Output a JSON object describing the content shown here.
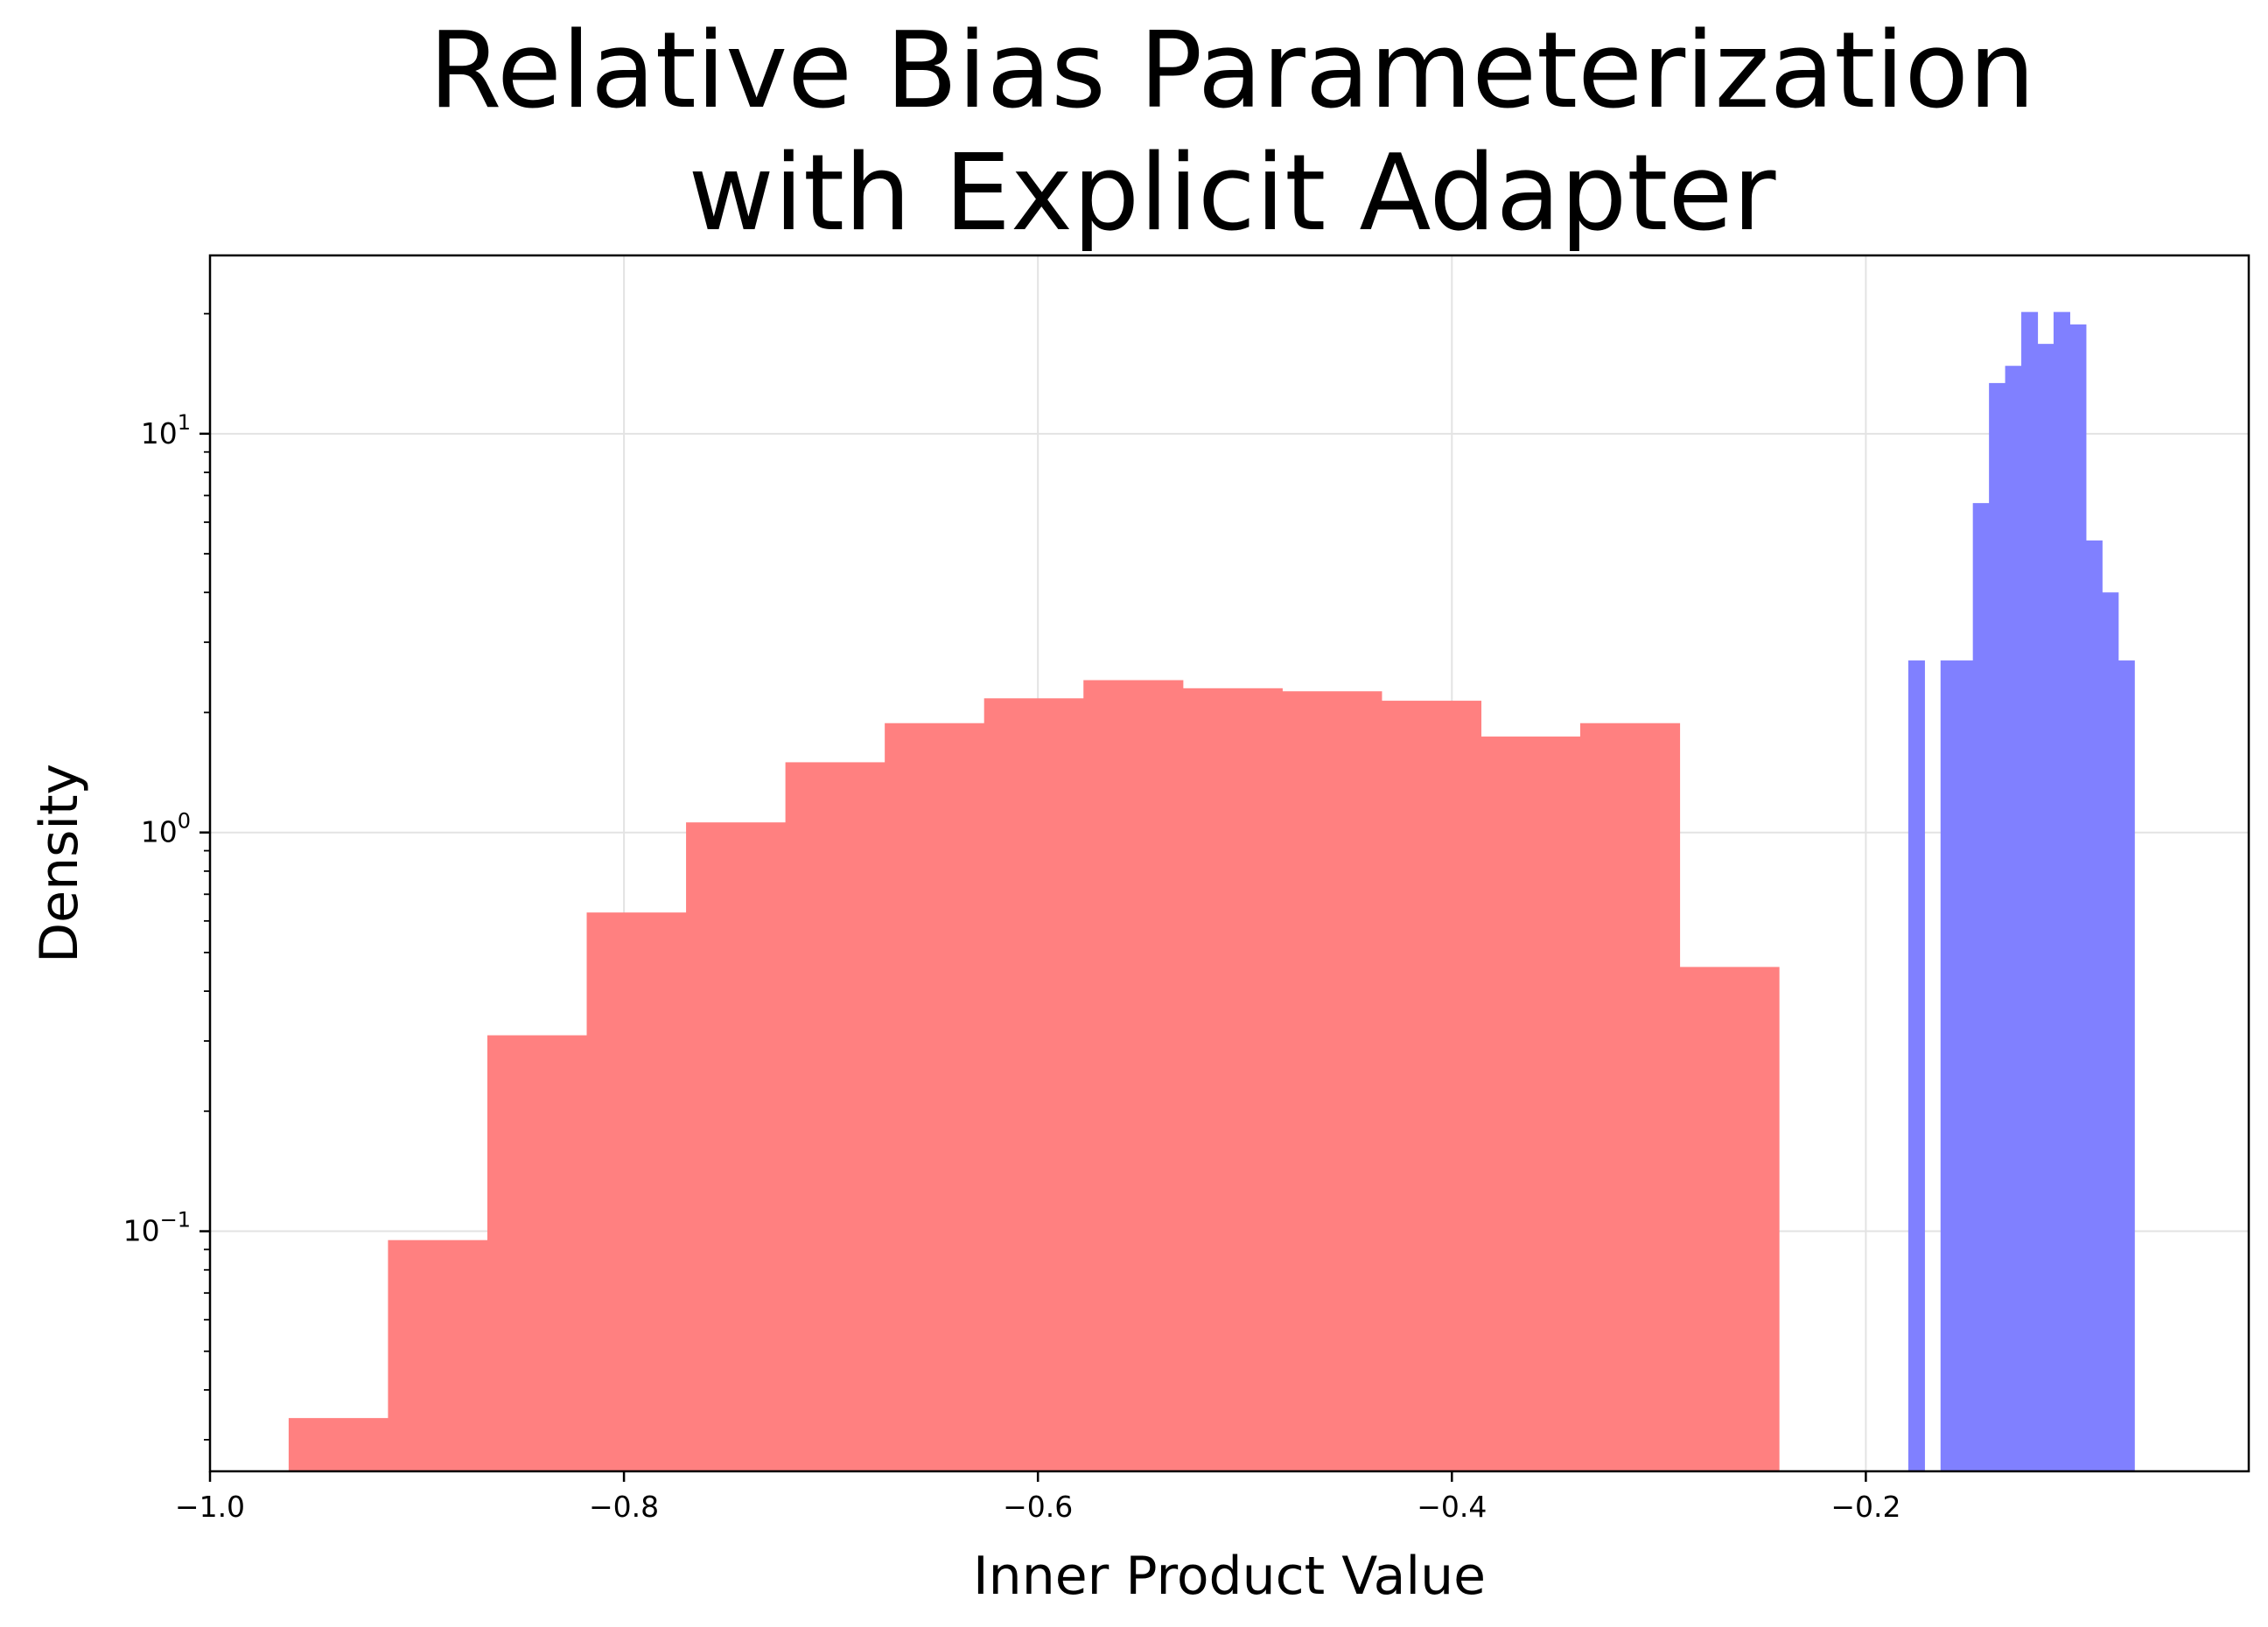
{
  "chart_data": {
    "type": "bar",
    "title_lines": [
      "Relative Bias Parameterization",
      "with Explicit Adapter"
    ],
    "xlabel": "Inner Product Value",
    "ylabel": "Density",
    "xlim": [
      -1.0,
      -0.015
    ],
    "ylim": [
      0.025,
      28
    ],
    "yscale": "log",
    "grid": true,
    "x_ticks": [
      {
        "value": -1.0,
        "label": "−1.0"
      },
      {
        "value": -0.8,
        "label": "−0.8"
      },
      {
        "value": -0.6,
        "label": "−0.6"
      },
      {
        "value": -0.4,
        "label": "−0.4"
      },
      {
        "value": -0.2,
        "label": "−0.2"
      }
    ],
    "y_ticks": [
      {
        "value": 0.1,
        "base": "10",
        "exp": "−1"
      },
      {
        "value": 1,
        "base": "10",
        "exp": "0"
      },
      {
        "value": 10,
        "base": "10",
        "exp": "1"
      }
    ],
    "series": [
      {
        "color": "#ff8080",
        "bins": [
          {
            "x0": -0.962,
            "x1": -0.914,
            "value": 0.034
          },
          {
            "x0": -0.914,
            "x1": -0.866,
            "value": 0.095
          },
          {
            "x0": -0.866,
            "x1": -0.818,
            "value": 0.31
          },
          {
            "x0": -0.818,
            "x1": -0.77,
            "value": 0.63
          },
          {
            "x0": -0.77,
            "x1": -0.722,
            "value": 1.06
          },
          {
            "x0": -0.722,
            "x1": -0.674,
            "value": 1.5
          },
          {
            "x0": -0.674,
            "x1": -0.626,
            "value": 1.88
          },
          {
            "x0": -0.626,
            "x1": -0.578,
            "value": 2.17
          },
          {
            "x0": -0.578,
            "x1": -0.53,
            "value": 2.41
          },
          {
            "x0": -0.53,
            "x1": -0.482,
            "value": 2.3
          },
          {
            "x0": -0.482,
            "x1": -0.434,
            "value": 2.26
          },
          {
            "x0": -0.434,
            "x1": -0.386,
            "value": 2.14
          },
          {
            "x0": -0.386,
            "x1": -0.338,
            "value": 1.74
          },
          {
            "x0": -0.338,
            "x1": -0.29,
            "value": 1.88
          },
          {
            "x0": -0.29,
            "x1": -0.242,
            "value": 0.46
          }
        ]
      },
      {
        "color": "#8080ff",
        "bins": [
          {
            "x0": -0.1795,
            "x1": -0.1717,
            "value": 2.7
          },
          {
            "x0": -0.1639,
            "x1": -0.1561,
            "value": 2.7
          },
          {
            "x0": -0.1561,
            "x1": -0.1483,
            "value": 2.7
          },
          {
            "x0": -0.1483,
            "x1": -0.1405,
            "value": 6.7
          },
          {
            "x0": -0.1405,
            "x1": -0.1327,
            "value": 13.4
          },
          {
            "x0": -0.1327,
            "x1": -0.1249,
            "value": 14.8
          },
          {
            "x0": -0.1249,
            "x1": -0.1171,
            "value": 20.2
          },
          {
            "x0": -0.1171,
            "x1": -0.1093,
            "value": 16.8
          },
          {
            "x0": -0.1093,
            "x1": -0.1015,
            "value": 20.2
          },
          {
            "x0": -0.1015,
            "x1": -0.0937,
            "value": 18.8
          },
          {
            "x0": -0.0937,
            "x1": -0.0859,
            "value": 5.4
          },
          {
            "x0": -0.0859,
            "x1": -0.0781,
            "value": 4.0
          },
          {
            "x0": -0.0781,
            "x1": -0.0703,
            "value": 2.7
          }
        ]
      }
    ]
  }
}
